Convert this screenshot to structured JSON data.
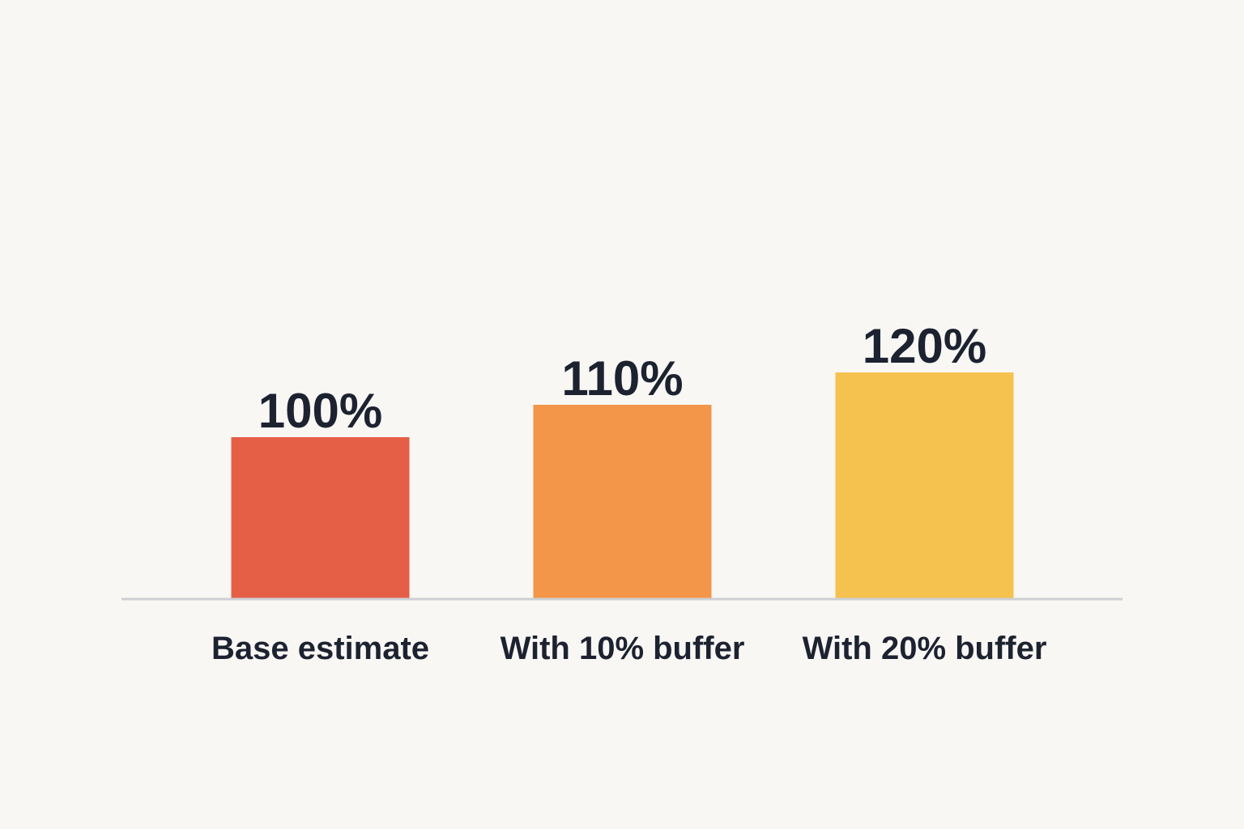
{
  "chart_data": {
    "type": "bar",
    "title": "",
    "xlabel": "",
    "ylabel": "",
    "categories": [
      "Base estimate",
      "With 10% buffer",
      "With 20% buffer"
    ],
    "values": [
      100,
      110,
      120
    ],
    "value_labels": [
      "100%",
      "110%",
      "120%"
    ],
    "colors": [
      "#e55f47",
      "#f39649",
      "#f5c14f"
    ],
    "baseline_color": "#ccd0d4",
    "ylim": [
      50,
      120
    ],
    "grid": false,
    "legend": "none"
  }
}
